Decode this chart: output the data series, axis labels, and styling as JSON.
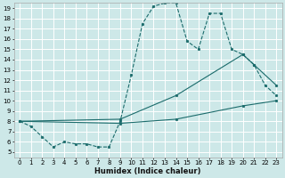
{
  "xlabel": "Humidex (Indice chaleur)",
  "bg_color": "#cde8e8",
  "line_color": "#1a6b6b",
  "grid_color": "#ffffff",
  "xlim": [
    -0.5,
    23.5
  ],
  "ylim": [
    4.5,
    19.5
  ],
  "xticks": [
    0,
    1,
    2,
    3,
    4,
    5,
    6,
    7,
    8,
    9,
    10,
    11,
    12,
    13,
    14,
    15,
    16,
    17,
    18,
    19,
    20,
    21,
    22,
    23
  ],
  "yticks": [
    5,
    6,
    7,
    8,
    9,
    10,
    11,
    12,
    13,
    14,
    15,
    16,
    17,
    18,
    19
  ],
  "curve1_x": [
    0,
    1,
    2,
    3,
    4,
    5,
    6,
    7,
    8,
    9,
    10,
    11,
    12,
    13,
    14,
    15,
    16,
    17,
    18,
    19,
    20,
    21,
    22,
    23
  ],
  "curve1_y": [
    8.0,
    7.5,
    6.5,
    5.5,
    6.0,
    5.8,
    5.8,
    5.5,
    5.5,
    8.0,
    12.5,
    17.5,
    19.2,
    19.5,
    19.5,
    15.8,
    15.0,
    18.5,
    18.5,
    15.0,
    14.5,
    13.5,
    11.5,
    10.5
  ],
  "curve2_x": [
    0,
    9,
    14,
    20,
    21,
    23
  ],
  "curve2_y": [
    8.0,
    8.2,
    10.5,
    14.5,
    13.5,
    11.5
  ],
  "curve3_x": [
    0,
    9,
    14,
    20,
    23
  ],
  "curve3_y": [
    8.0,
    7.8,
    8.2,
    9.5,
    10.0
  ]
}
